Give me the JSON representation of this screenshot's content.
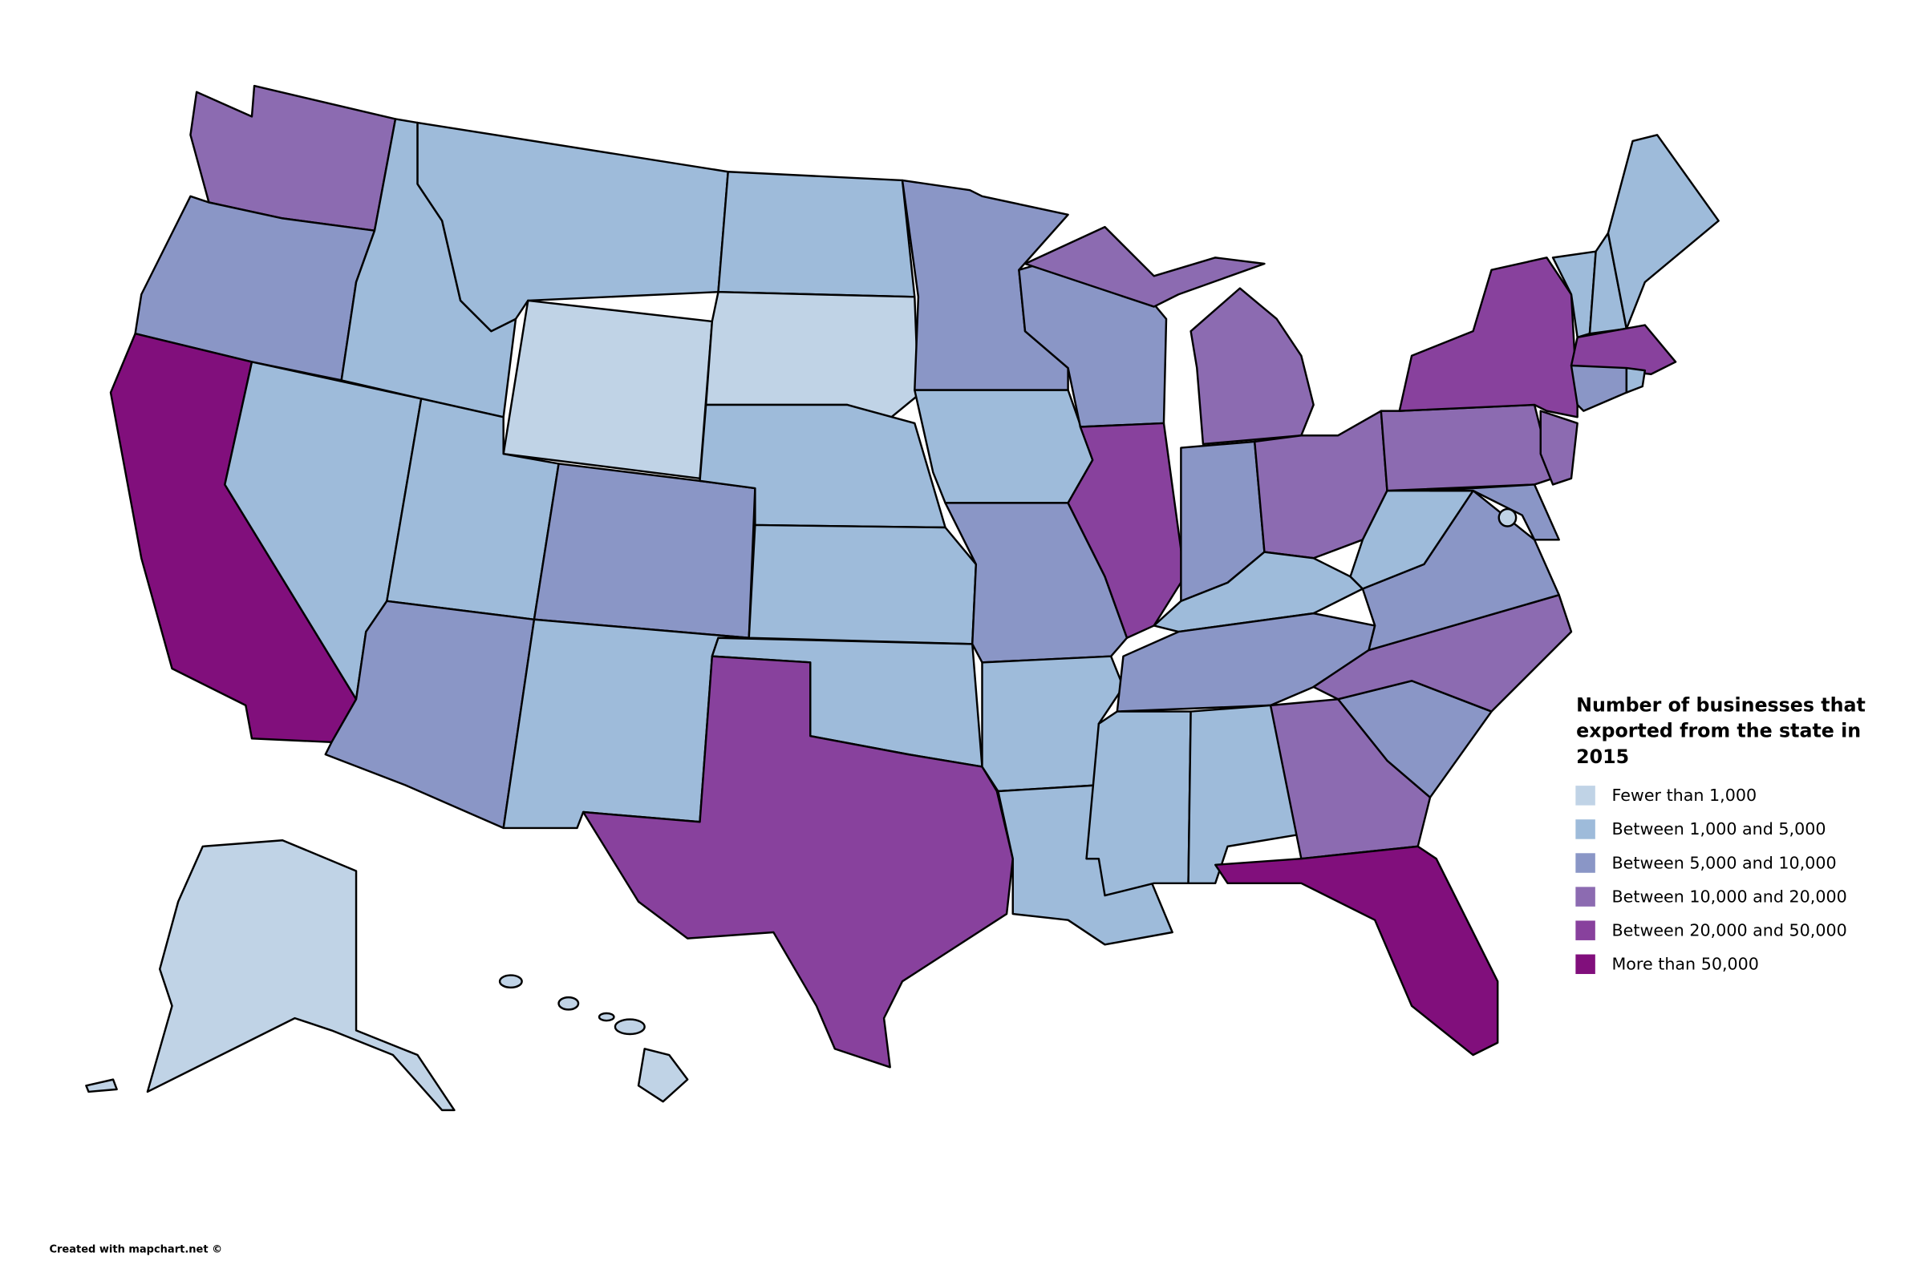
{
  "legend": {
    "title": "Number of businesses that exported from the state in 2015",
    "items": [
      {
        "label": "Fewer than 1,000",
        "color": "#c0d3e6"
      },
      {
        "label": "Between 1,000 and 5,000",
        "color": "#9ebbda"
      },
      {
        "label": "Between 5,000 and 10,000",
        "color": "#8a96c6"
      },
      {
        "label": "Between 10,000 and 20,000",
        "color": "#8c6bb1"
      },
      {
        "label": "Between 20,000 and 50,000",
        "color": "#88419d"
      },
      {
        "label": "More than 50,000",
        "color": "#810f7c"
      }
    ]
  },
  "credit": "Created with mapchart.net ©"
}
